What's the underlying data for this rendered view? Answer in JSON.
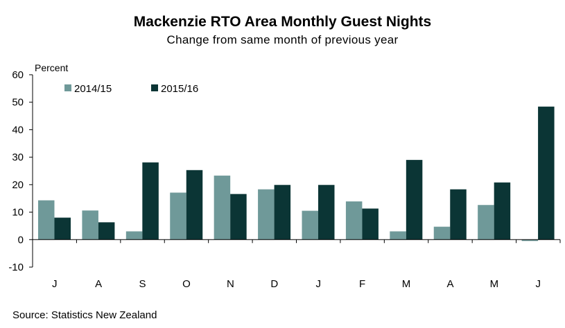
{
  "chart_data": {
    "type": "bar",
    "title": "Mackenzie RTO Area Monthly Guest Nights",
    "subtitle": "Change from same month of previous  year",
    "ylabel": "Percent",
    "xlabel": "",
    "source": "Source: Statistics New Zealand",
    "categories": [
      "J",
      "A",
      "S",
      "O",
      "N",
      "D",
      "J",
      "F",
      "M",
      "A",
      "M",
      "J"
    ],
    "series": [
      {
        "name": "2014/15",
        "color": "#6f9999",
        "values": [
          14.3,
          10.6,
          3.0,
          17.1,
          23.3,
          18.3,
          10.5,
          13.9,
          3.0,
          4.7,
          12.6,
          -0.5
        ]
      },
      {
        "name": "2015/16",
        "color": "#0b3535",
        "values": [
          8.0,
          6.3,
          28.1,
          25.3,
          16.6,
          19.9,
          19.9,
          11.3,
          29.0,
          18.3,
          20.8,
          48.4
        ]
      }
    ],
    "ylim": [
      -10,
      60
    ],
    "yticks": [
      -10,
      0,
      10,
      20,
      30,
      40,
      50,
      60
    ],
    "legend_position": "top-left",
    "grid": false
  }
}
